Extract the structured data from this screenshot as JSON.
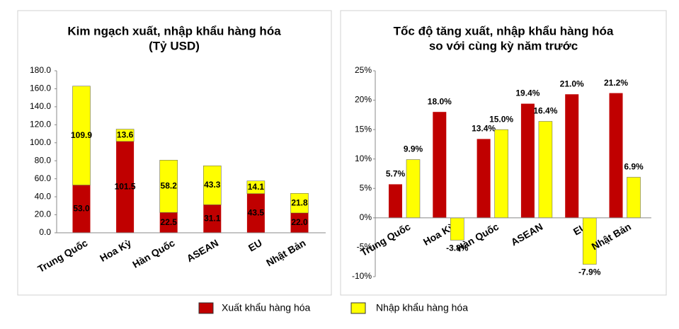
{
  "chart_data": [
    {
      "type": "bar",
      "stacked": true,
      "title": [
        "Kim ngạch xuất, nhập khẩu hàng hóa",
        "(Tỷ USD)"
      ],
      "categories": [
        "Trung Quốc",
        "Hoa Kỳ",
        "Hàn Quốc",
        "ASEAN",
        "EU",
        "Nhật Bản"
      ],
      "series": [
        {
          "name": "Xuất khẩu hàng hóa",
          "color": "#c00000",
          "values": [
            53.0,
            101.5,
            22.5,
            31.1,
            43.5,
            22.0
          ],
          "value_labels": [
            "53.0",
            "101.5",
            "22.5",
            "31.1",
            "43.5",
            "22.0"
          ]
        },
        {
          "name": "Nhập khẩu hàng hóa",
          "color": "#ffff00",
          "values": [
            109.9,
            13.6,
            58.2,
            43.3,
            14.1,
            21.8
          ],
          "value_labels": [
            "109.9",
            "13.6",
            "58.2",
            "43.3",
            "14.1",
            "21.8"
          ]
        }
      ],
      "ylim": [
        0,
        180
      ],
      "yticks": [
        {
          "value": 0,
          "label": "0.0"
        },
        {
          "value": 20,
          "label": "20.0"
        },
        {
          "value": 40,
          "label": "40.0"
        },
        {
          "value": 60,
          "label": "60.0"
        },
        {
          "value": 80,
          "label": "80.0"
        },
        {
          "value": 100,
          "label": "100.0"
        },
        {
          "value": 120,
          "label": "120.0"
        },
        {
          "value": 140,
          "label": "140.0"
        },
        {
          "value": 160,
          "label": "160.0"
        },
        {
          "value": 180,
          "label": "180.0"
        }
      ]
    },
    {
      "type": "bar",
      "stacked": false,
      "title": [
        "Tốc độ tăng xuất, nhập khẩu hàng hóa",
        "so với cùng kỳ năm trước"
      ],
      "categories": [
        "Trung Quốc",
        "Hoa Kỳ",
        "Hàn Quốc",
        "ASEAN",
        "EU",
        "Nhật Bản"
      ],
      "series": [
        {
          "color": "#c00000",
          "values": [
            5.7,
            18.0,
            13.4,
            19.4,
            21.0,
            21.2
          ],
          "value_labels": [
            "5.7%",
            "18.0%",
            "13.4%",
            "19.4%",
            "21.0%",
            "21.2%"
          ]
        },
        {
          "color": "#ffff00",
          "values": [
            9.9,
            -3.8,
            15.0,
            16.4,
            -7.9,
            6.9
          ],
          "value_labels": [
            "9.9%",
            "-3.8%",
            "15.0%",
            "16.4%",
            "-7.9%",
            "6.9%"
          ]
        }
      ],
      "ylim": [
        -10,
        25
      ],
      "yticks": [
        {
          "value": -10,
          "label": "-10%"
        },
        {
          "value": -5,
          "label": "-5%"
        },
        {
          "value": 0,
          "label": "0%"
        },
        {
          "value": 5,
          "label": "5%"
        },
        {
          "value": 10,
          "label": "10%"
        },
        {
          "value": 15,
          "label": "15%"
        },
        {
          "value": 20,
          "label": "20%"
        },
        {
          "value": 25,
          "label": "25%"
        }
      ]
    }
  ]
}
